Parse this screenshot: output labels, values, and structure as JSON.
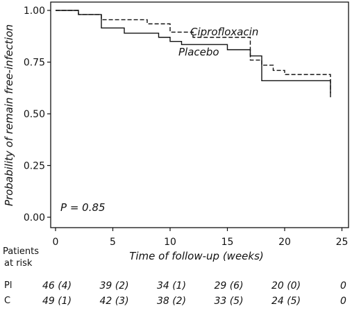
{
  "chart_data": {
    "type": "line",
    "step": true,
    "xlabel": "Time of follow-up (weeks)",
    "ylabel": "Probability of remain free-infection",
    "xlim": [
      0,
      25
    ],
    "ylim": [
      0,
      1
    ],
    "x_ticks": [
      "0",
      "5",
      "10",
      "15",
      "20",
      "25"
    ],
    "x_tick_values": [
      0,
      5,
      10,
      15,
      20,
      25
    ],
    "y_ticks": [
      "0.00",
      "0.25",
      "0.50",
      "0.75",
      "1.00"
    ],
    "y_tick_values": [
      0,
      0.25,
      0.5,
      0.75,
      1.0
    ],
    "grid": false,
    "annotation": "P = 0.85",
    "series": [
      {
        "name": "Placebo",
        "style": "solid",
        "color": "#111111",
        "x": [
          0,
          2,
          4,
          6,
          9,
          10,
          11,
          15,
          17,
          18,
          24,
          24
        ],
        "y": [
          1.0,
          0.98,
          0.915,
          0.89,
          0.87,
          0.85,
          0.835,
          0.81,
          0.78,
          0.66,
          0.66,
          0.58
        ]
      },
      {
        "name": "Ciprofloxacin",
        "style": "dashed",
        "color": "#111111",
        "x": [
          0,
          2,
          4,
          8,
          10,
          12,
          17,
          18,
          19,
          20,
          24,
          24
        ],
        "y": [
          1.0,
          0.98,
          0.955,
          0.935,
          0.895,
          0.87,
          0.76,
          0.735,
          0.71,
          0.69,
          0.69,
          0.6
        ]
      }
    ],
    "risk_table": {
      "header": [
        "Patients",
        "at risk"
      ],
      "times": [
        0,
        5,
        10,
        15,
        20,
        25
      ],
      "rows": [
        {
          "label": "Pl",
          "values": [
            "46 (4)",
            "39 (2)",
            "34 (1)",
            "29 (6)",
            "20 (0)",
            "0"
          ]
        },
        {
          "label": "C",
          "values": [
            "49 (1)",
            "42 (3)",
            "38 (2)",
            "33 (5)",
            "24 (5)",
            "0"
          ]
        }
      ]
    }
  }
}
